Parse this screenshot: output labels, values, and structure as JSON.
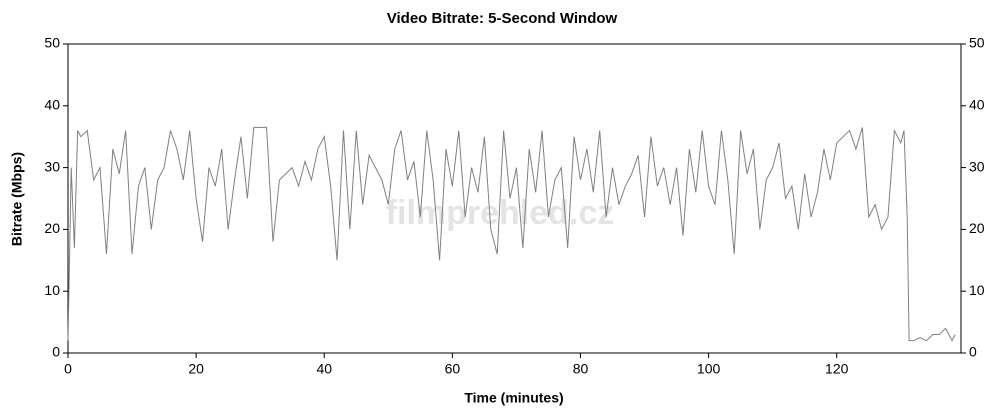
{
  "chart_data": {
    "type": "line",
    "title": "Video Bitrate: 5-Second Window",
    "x_label": "Time (minutes)",
    "y_label": "Bitrate (Mbps)",
    "watermark": "filmprehled.cz",
    "xlim": [
      0,
      139.4
    ],
    "xticks": [
      0,
      20,
      40,
      60,
      80,
      100,
      120
    ],
    "ylim": [
      0,
      50
    ],
    "yticks": [
      0,
      10,
      20,
      30,
      40,
      50
    ],
    "series": [
      {
        "color": "#808080",
        "x": [
          0,
          0.5,
          1,
          1.5,
          2,
          3,
          4,
          5,
          6,
          7,
          8,
          9,
          10,
          11,
          12,
          13,
          14,
          15,
          16,
          17,
          18,
          19,
          20,
          21,
          22,
          23,
          24,
          25,
          26,
          27,
          28,
          29,
          30,
          31,
          32,
          33,
          34,
          35,
          36,
          37,
          38,
          39,
          40,
          41,
          42,
          43,
          44,
          45,
          46,
          47,
          48,
          49,
          50,
          51,
          52,
          53,
          54,
          55,
          56,
          57,
          58,
          59,
          60,
          61,
          62,
          63,
          64,
          65,
          66,
          67,
          68,
          69,
          70,
          71,
          72,
          73,
          74,
          75,
          76,
          77,
          78,
          79,
          80,
          81,
          82,
          83,
          84,
          85,
          86,
          87,
          88,
          89,
          90,
          91,
          92,
          93,
          94,
          95,
          96,
          97,
          98,
          99,
          100,
          101,
          102,
          103,
          104,
          105,
          106,
          107,
          108,
          109,
          110,
          111,
          112,
          113,
          114,
          115,
          116,
          117,
          118,
          119,
          120,
          121,
          122,
          123,
          124,
          125,
          126,
          127,
          128,
          129,
          130,
          130.5,
          131,
          131.3,
          132,
          133,
          134,
          135,
          136,
          137,
          138,
          138.5
        ],
        "values": [
          2,
          30,
          17,
          36,
          35,
          36,
          28,
          30,
          16,
          33,
          29,
          36,
          16,
          27,
          30,
          20,
          28,
          30,
          36,
          33,
          28,
          36,
          25,
          18,
          30,
          27,
          33,
          20,
          28,
          35,
          25,
          36.5,
          36.5,
          36.5,
          18,
          28,
          29,
          30,
          27,
          31,
          28,
          33,
          35,
          27,
          15,
          36,
          20,
          36,
          24,
          32,
          30,
          28,
          24,
          33,
          36,
          28,
          31,
          22,
          36,
          28,
          15,
          33,
          27,
          36,
          22,
          30,
          26,
          35,
          20,
          16,
          36,
          25,
          30,
          17,
          33,
          26,
          36,
          22,
          28,
          30,
          17,
          35,
          28,
          33,
          26,
          36,
          22,
          30,
          24,
          27,
          29,
          32,
          22,
          35,
          27,
          30,
          24,
          30,
          19,
          33,
          26,
          36,
          27,
          24,
          36,
          28,
          16,
          36,
          29,
          33,
          20,
          28,
          30,
          34,
          25,
          27,
          20,
          29,
          22,
          26,
          33,
          28,
          34,
          35,
          36,
          33,
          36.5,
          22,
          24,
          20,
          22,
          36,
          34,
          36,
          22,
          2,
          2,
          2.5,
          2,
          3,
          3,
          4,
          2,
          3
        ]
      }
    ]
  }
}
